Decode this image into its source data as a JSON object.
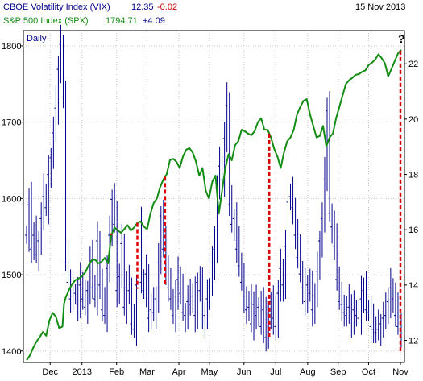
{
  "header": {
    "vix_label": "CBOE Volatility Index (VIX)",
    "vix_value": "12.35",
    "vix_change": "-0.02",
    "spx_label": "S&P 500 Index (SPX)",
    "spx_value": "1794.71",
    "spx_change": "+4.09",
    "date": "15 Nov 2013",
    "period": "Daily",
    "question_mark": "?"
  },
  "colors": {
    "vix": "#00008b",
    "spx": "#138c13",
    "negative": "#cc0000",
    "marker": "#dd0000",
    "axis_text": "#000000",
    "frame": "#000000"
  },
  "chart_data": {
    "type": "line",
    "x_labels": [
      "Dec",
      "2013",
      "Feb",
      "Mar",
      "Apr",
      "May",
      "Jun",
      "Jul",
      "Aug",
      "Sep",
      "Oct",
      "Nov"
    ],
    "left_axis": {
      "series": "S&P 500 Index (SPX)",
      "ticks": [
        1400,
        1500,
        1600,
        1700,
        1800
      ],
      "range": [
        1385,
        1820
      ]
    },
    "right_axis": {
      "series": "CBOE Volatility Index (VIX)",
      "ticks": [
        12,
        14,
        16,
        18,
        20,
        22
      ],
      "range": [
        11.2,
        23.2
      ]
    },
    "x_index_range": [
      0,
      250
    ],
    "month_index": [
      17,
      40,
      65,
      87,
      110,
      132,
      157,
      180,
      203,
      225,
      247,
      270
    ],
    "series": [
      {
        "name": "S&P 500 Index (SPX)",
        "axis": "left",
        "points": [
          [
            0,
            1388
          ],
          [
            4,
            1394
          ],
          [
            8,
            1404
          ],
          [
            12,
            1412
          ],
          [
            16,
            1418
          ],
          [
            20,
            1425
          ],
          [
            24,
            1420
          ],
          [
            28,
            1440
          ],
          [
            32,
            1450
          ],
          [
            36,
            1445
          ],
          [
            40,
            1430
          ],
          [
            44,
            1432
          ],
          [
            46,
            1462
          ],
          [
            48,
            1470
          ],
          [
            52,
            1480
          ],
          [
            56,
            1488
          ],
          [
            60,
            1493
          ],
          [
            64,
            1495
          ],
          [
            68,
            1498
          ],
          [
            72,
            1503
          ],
          [
            76,
            1512
          ],
          [
            80,
            1519
          ],
          [
            84,
            1520
          ],
          [
            88,
            1515
          ],
          [
            92,
            1517
          ],
          [
            96,
            1522
          ],
          [
            100,
            1515
          ],
          [
            104,
            1552
          ],
          [
            108,
            1562
          ],
          [
            112,
            1558
          ],
          [
            116,
            1555
          ],
          [
            120,
            1560
          ],
          [
            124,
            1565
          ],
          [
            128,
            1558
          ],
          [
            132,
            1562
          ],
          [
            136,
            1568
          ],
          [
            140,
            1570
          ],
          [
            144,
            1563
          ],
          [
            148,
            1560
          ],
          [
            152,
            1580
          ],
          [
            156,
            1594
          ],
          [
            160,
            1600
          ],
          [
            164,
            1615
          ],
          [
            168,
            1625
          ],
          [
            172,
            1632
          ],
          [
            176,
            1650
          ],
          [
            180,
            1652
          ],
          [
            184,
            1648
          ],
          [
            188,
            1640
          ],
          [
            192,
            1655
          ],
          [
            196,
            1664
          ],
          [
            200,
            1666
          ],
          [
            204,
            1660
          ],
          [
            208,
            1648
          ],
          [
            212,
            1630
          ],
          [
            216,
            1640
          ],
          [
            220,
            1610
          ],
          [
            224,
            1600
          ],
          [
            228,
            1622
          ],
          [
            232,
            1630
          ],
          [
            236,
            1580
          ],
          [
            240,
            1610
          ],
          [
            244,
            1640
          ],
          [
            248,
            1658
          ],
          [
            252,
            1650
          ],
          [
            256,
            1670
          ],
          [
            260,
            1675
          ],
          [
            264,
            1690
          ],
          [
            268,
            1688
          ],
          [
            272,
            1685
          ],
          [
            276,
            1683
          ],
          [
            280,
            1688
          ],
          [
            284,
            1700
          ],
          [
            288,
            1705
          ],
          [
            292,
            1690
          ],
          [
            296,
            1690
          ],
          [
            300,
            1680
          ],
          [
            304,
            1665
          ],
          [
            308,
            1655
          ],
          [
            312,
            1640
          ],
          [
            316,
            1660
          ],
          [
            320,
            1675
          ],
          [
            324,
            1680
          ],
          [
            328,
            1690
          ],
          [
            332,
            1710
          ],
          [
            336,
            1720
          ],
          [
            340,
            1728
          ],
          [
            344,
            1730
          ],
          [
            348,
            1710
          ],
          [
            352,
            1695
          ],
          [
            356,
            1680
          ],
          [
            360,
            1682
          ],
          [
            364,
            1695
          ],
          [
            368,
            1668
          ],
          [
            372,
            1680
          ],
          [
            376,
            1685
          ],
          [
            380,
            1705
          ],
          [
            384,
            1720
          ],
          [
            388,
            1735
          ],
          [
            392,
            1750
          ],
          [
            396,
            1755
          ],
          [
            400,
            1758
          ],
          [
            404,
            1762
          ],
          [
            408,
            1763
          ],
          [
            412,
            1766
          ],
          [
            416,
            1768
          ],
          [
            420,
            1775
          ],
          [
            424,
            1778
          ],
          [
            428,
            1782
          ],
          [
            432,
            1789
          ],
          [
            436,
            1784
          ],
          [
            440,
            1777
          ],
          [
            444,
            1760
          ],
          [
            448,
            1770
          ],
          [
            452,
            1780
          ],
          [
            456,
            1790
          ],
          [
            460,
            1795
          ]
        ],
        "x_range": [
          0,
          460
        ]
      },
      {
        "name": "CBOE Volatility Index (VIX)",
        "axis": "right",
        "points": [
          [
            0,
            15.8
          ],
          [
            3,
            16.9
          ],
          [
            6,
            15.3
          ],
          [
            9,
            15.8
          ],
          [
            12,
            15.1
          ],
          [
            15,
            15.6
          ],
          [
            18,
            16.4
          ],
          [
            21,
            17.2
          ],
          [
            24,
            16.8
          ],
          [
            27,
            18.0
          ],
          [
            30,
            18.6
          ],
          [
            33,
            19.5
          ],
          [
            36,
            20.4
          ],
          [
            39,
            21.8
          ],
          [
            42,
            22.7
          ],
          [
            45,
            20.8
          ],
          [
            48,
            14.8
          ],
          [
            51,
            14.1
          ],
          [
            54,
            13.5
          ],
          [
            57,
            13.6
          ],
          [
            60,
            13.7
          ],
          [
            63,
            13.3
          ],
          [
            66,
            14.0
          ],
          [
            69,
            13.5
          ],
          [
            72,
            13.2
          ],
          [
            75,
            13.8
          ],
          [
            78,
            14.8
          ],
          [
            81,
            13.9
          ],
          [
            84,
            13.5
          ],
          [
            87,
            15.6
          ],
          [
            90,
            14.0
          ],
          [
            93,
            13.1
          ],
          [
            96,
            12.9
          ],
          [
            99,
            14.6
          ],
          [
            102,
            15.8
          ],
          [
            105,
            17.1
          ],
          [
            108,
            16.2
          ],
          [
            111,
            13.8
          ],
          [
            114,
            14.3
          ],
          [
            117,
            15.5
          ],
          [
            120,
            13.2
          ],
          [
            123,
            13.9
          ],
          [
            126,
            13.8
          ],
          [
            129,
            12.6
          ],
          [
            132,
            12.4
          ],
          [
            135,
            14.0
          ],
          [
            138,
            16.0
          ],
          [
            141,
            14.1
          ],
          [
            144,
            13.8
          ],
          [
            147,
            14.4
          ],
          [
            150,
            12.8
          ],
          [
            153,
            13.1
          ],
          [
            156,
            13.0
          ],
          [
            159,
            13.5
          ],
          [
            162,
            14.8
          ],
          [
            165,
            16.5
          ],
          [
            168,
            15.3
          ],
          [
            171,
            14.6
          ],
          [
            174,
            13.9
          ],
          [
            177,
            13.5
          ],
          [
            180,
            12.9
          ],
          [
            183,
            13.6
          ],
          [
            186,
            14.2
          ],
          [
            189,
            13.7
          ],
          [
            192,
            13.0
          ],
          [
            195,
            12.9
          ],
          [
            198,
            13.4
          ],
          [
            201,
            13.3
          ],
          [
            204,
            13.6
          ],
          [
            207,
            12.9
          ],
          [
            210,
            14.1
          ],
          [
            213,
            13.8
          ],
          [
            216,
            12.7
          ],
          [
            219,
            12.9
          ],
          [
            222,
            13.5
          ],
          [
            225,
            13.9
          ],
          [
            228,
            14.8
          ],
          [
            231,
            15.3
          ],
          [
            234,
            17.5
          ],
          [
            237,
            18.3
          ],
          [
            240,
            17.8
          ],
          [
            243,
            19.3
          ],
          [
            246,
            20.5
          ],
          [
            249,
            16.9
          ],
          [
            252,
            16.2
          ],
          [
            255,
            16.4
          ],
          [
            258,
            15.3
          ],
          [
            261,
            14.7
          ],
          [
            264,
            14.1
          ],
          [
            267,
            13.6
          ],
          [
            270,
            13.1
          ],
          [
            273,
            13.2
          ],
          [
            276,
            12.6
          ],
          [
            279,
            13.3
          ],
          [
            282,
            12.9
          ],
          [
            285,
            13.2
          ],
          [
            288,
            12.5
          ],
          [
            291,
            13.1
          ],
          [
            294,
            12.1
          ],
          [
            297,
            12.7
          ],
          [
            300,
            13.4
          ],
          [
            303,
            12.8
          ],
          [
            306,
            12.5
          ],
          [
            309,
            13.7
          ],
          [
            312,
            14.6
          ],
          [
            315,
            14.0
          ],
          [
            318,
            15.4
          ],
          [
            321,
            17.0
          ],
          [
            324,
            17.2
          ],
          [
            327,
            16.8
          ],
          [
            330,
            15.8
          ],
          [
            333,
            15.0
          ],
          [
            336,
            14.4
          ],
          [
            339,
            13.9
          ],
          [
            342,
            13.4
          ],
          [
            345,
            14.0
          ],
          [
            348,
            13.7
          ],
          [
            351,
            13.1
          ],
          [
            354,
            13.6
          ],
          [
            357,
            14.5
          ],
          [
            360,
            15.6
          ],
          [
            363,
            16.4
          ],
          [
            366,
            17.8
          ],
          [
            369,
            20.3
          ],
          [
            372,
            16.6
          ],
          [
            375,
            16.1
          ],
          [
            378,
            15.4
          ],
          [
            381,
            14.2
          ],
          [
            384,
            13.4
          ],
          [
            387,
            13.3
          ],
          [
            390,
            13.0
          ],
          [
            393,
            12.9
          ],
          [
            396,
            13.2
          ],
          [
            399,
            12.7
          ],
          [
            402,
            13.1
          ],
          [
            405,
            12.9
          ],
          [
            408,
            12.8
          ],
          [
            411,
            13.5
          ],
          [
            414,
            13.8
          ],
          [
            417,
            13.1
          ],
          [
            420,
            13.0
          ],
          [
            423,
            12.5
          ],
          [
            426,
            12.4
          ],
          [
            429,
            12.3
          ],
          [
            432,
            12.4
          ],
          [
            435,
            12.6
          ],
          [
            438,
            12.8
          ],
          [
            441,
            12.9
          ],
          [
            444,
            13.4
          ],
          [
            447,
            13.9
          ],
          [
            450,
            13.5
          ],
          [
            453,
            12.9
          ],
          [
            456,
            12.5
          ],
          [
            460,
            12.35
          ]
        ],
        "x_range": [
          0,
          460
        ]
      }
    ],
    "markers": [
      {
        "x": 104,
        "from_series": "SPX",
        "to_series": "VIX"
      },
      {
        "x": 136,
        "from_series": "SPX",
        "to_series": "VIX"
      },
      {
        "x": 170,
        "from_series": "SPX",
        "to_series": "VIX"
      },
      {
        "x": 298,
        "from_series": "SPX",
        "to_series": "VIX"
      },
      {
        "x": 459,
        "from_series": "SPX",
        "to_series": "VIX"
      }
    ]
  }
}
